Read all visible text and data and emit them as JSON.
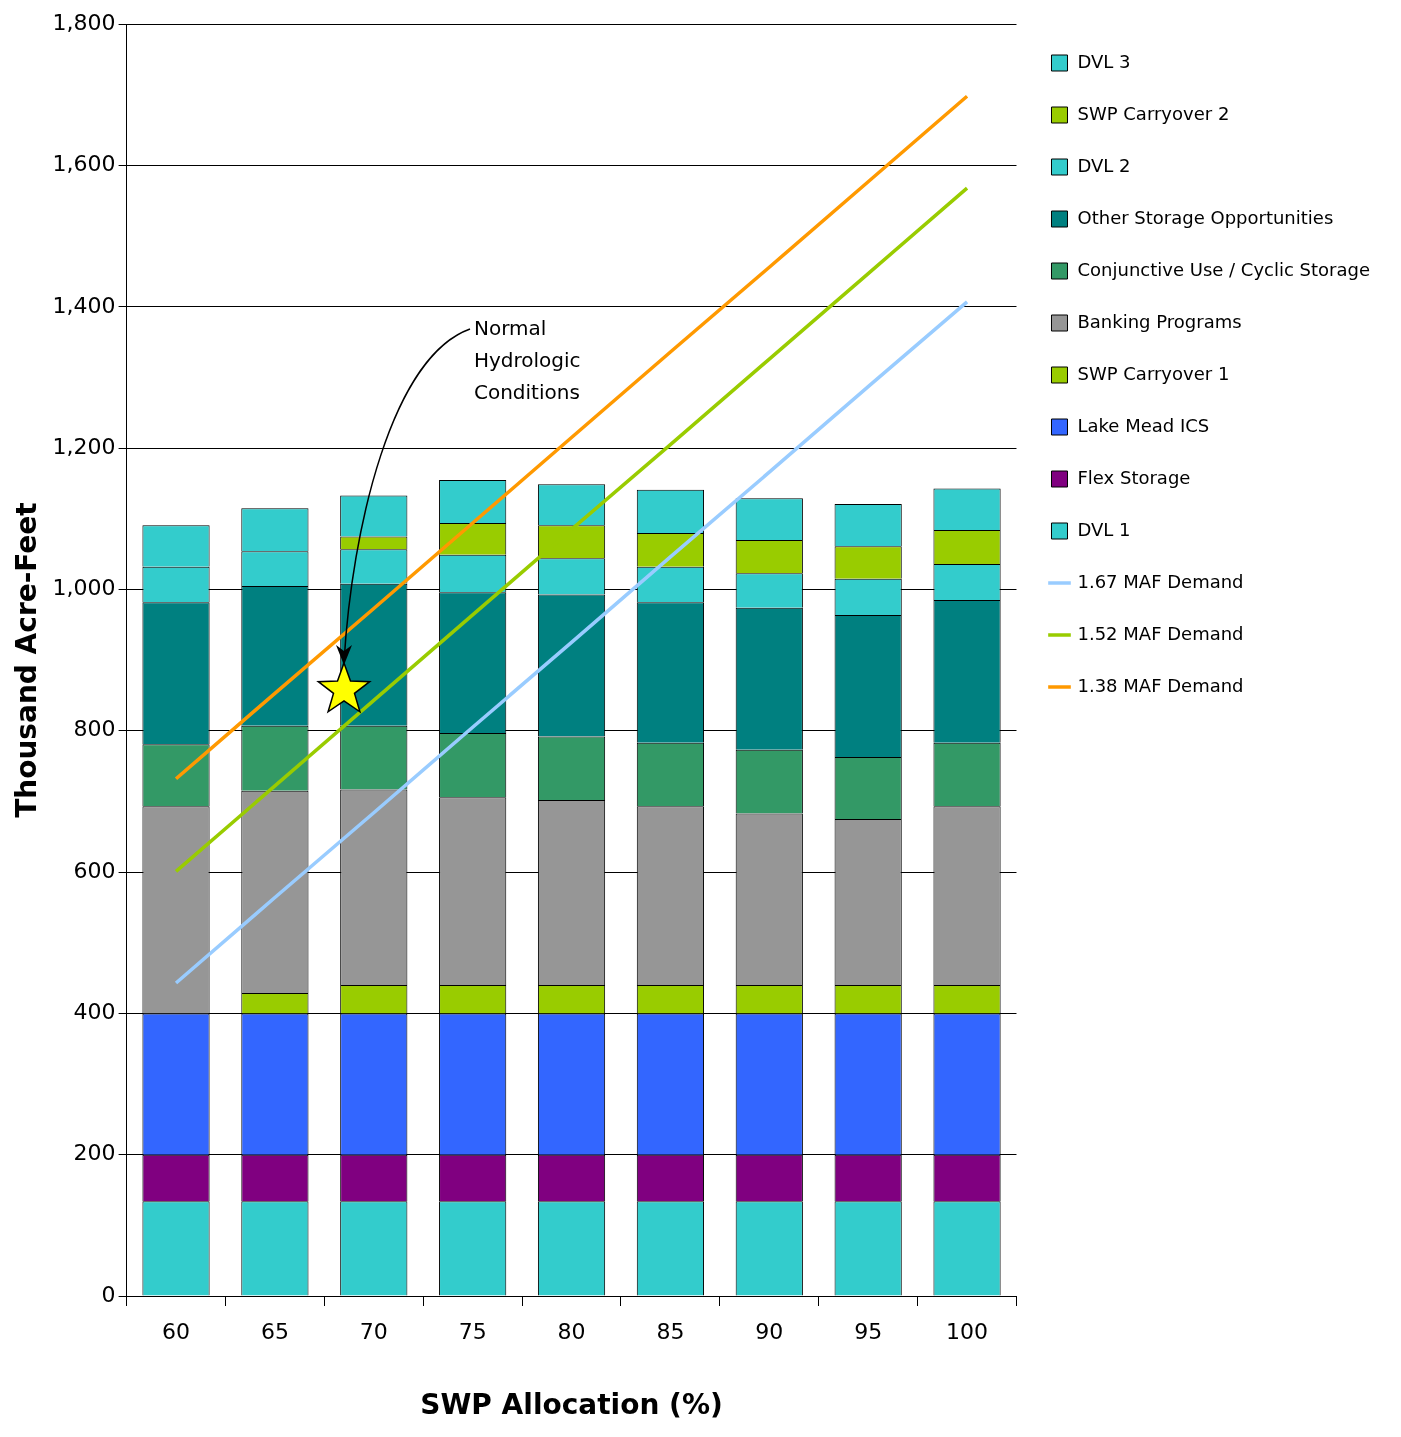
{
  "chart_data": {
    "type": "bar",
    "stacked": true,
    "xlabel": "SWP Allocation (%)",
    "ylabel": "Thousand Acre-Feet",
    "categories": [
      "60",
      "65",
      "70",
      "75",
      "80",
      "85",
      "90",
      "95",
      "100"
    ],
    "ylim": [
      0,
      1800
    ],
    "yticks": [
      {
        "value": 0,
        "label": "0"
      },
      {
        "value": 200,
        "label": "200"
      },
      {
        "value": 400,
        "label": "400"
      },
      {
        "value": 600,
        "label": "600"
      },
      {
        "value": 800,
        "label": "800"
      },
      {
        "value": 1000,
        "label": "1,000"
      },
      {
        "value": 1200,
        "label": "1,200"
      },
      {
        "value": 1400,
        "label": "1,400"
      },
      {
        "value": 1600,
        "label": "1,600"
      },
      {
        "value": 1800,
        "label": "1,800"
      }
    ],
    "grid": "y",
    "legend": "right",
    "marker": "none",
    "line_style": "solid",
    "annotations": [
      "Normal Hydrologic Conditions"
    ],
    "series": [
      {
        "name": "DVL 1",
        "color": "#33cccc",
        "values": [
          134,
          134,
          134,
          134,
          134,
          134,
          134,
          134,
          134
        ]
      },
      {
        "name": "Flex Storage",
        "color": "#800080",
        "values": [
          66,
          66,
          66,
          66,
          66,
          66,
          66,
          66,
          66
        ]
      },
      {
        "name": "Lake Mead ICS",
        "color": "#3366ff",
        "values": [
          200,
          200,
          200,
          200,
          200,
          200,
          200,
          200,
          200
        ]
      },
      {
        "name": "SWP Carryover 1",
        "color": "#99cc00",
        "values": [
          0,
          29,
          40,
          40,
          40,
          40,
          40,
          40,
          40
        ]
      },
      {
        "name": "Banking Programs",
        "color": "#969696",
        "values": [
          293,
          286,
          277,
          266,
          262,
          253,
          243,
          235,
          253
        ]
      },
      {
        "name": "Conjunctive Use / Cyclic Storage",
        "color": "#339966",
        "values": [
          88,
          92,
          90,
          91,
          90,
          90,
          90,
          88,
          90
        ]
      },
      {
        "name": "Other Storage Opportunities",
        "color": "#008080",
        "values": [
          201,
          198,
          201,
          199,
          201,
          199,
          201,
          201,
          202
        ]
      },
      {
        "name": "DVL 2",
        "color": "#33cccc",
        "values": [
          50,
          49,
          49,
          53,
          51,
          50,
          49,
          51,
          51
        ]
      },
      {
        "name": "SWP Carryover 2",
        "color": "#99cc00",
        "values": [
          0,
          0,
          18,
          45,
          47,
          48,
          47,
          46,
          48
        ]
      },
      {
        "name": "DVL 3",
        "color": "#33cccc",
        "values": [
          59,
          61,
          58,
          61,
          58,
          61,
          59,
          60,
          59
        ]
      },
      {
        "name": "1.67 MAF Demand",
        "type": "line",
        "color": "#99ccff",
        "values": [
          443,
          564,
          684,
          805,
          925,
          1046,
          1166,
          1287,
          1407
        ]
      },
      {
        "name": "1.52 MAF Demand",
        "type": "line",
        "color": "#99cc00",
        "values": [
          601,
          722,
          843,
          964,
          1085,
          1205,
          1326,
          1447,
          1568
        ]
      },
      {
        "name": "1.38 MAF Demand",
        "type": "line",
        "color": "#ff9900",
        "values": [
          732,
          853,
          973,
          1094,
          1215,
          1336,
          1456,
          1577,
          1698
        ]
      }
    ]
  }
}
